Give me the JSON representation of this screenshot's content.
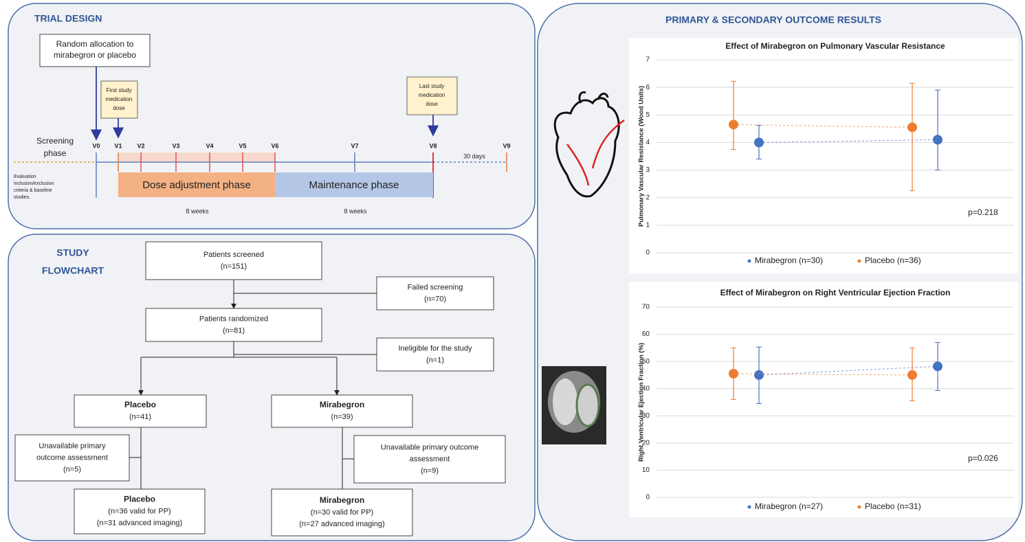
{
  "trial_design": {
    "title": "TRIAL DESIGN",
    "allocation": [
      "Random allocation to",
      "mirabegron or placebo"
    ],
    "first_dose": [
      "First study",
      "medication",
      "dose"
    ],
    "last_dose": [
      "Last study",
      "medication",
      "dose"
    ],
    "screening": [
      "Screening",
      "phase"
    ],
    "evaluation": [
      "Evaluation",
      "inclusion/exclusion",
      "criteria & baseline",
      "studies."
    ],
    "visits": [
      "V0",
      "V1",
      "V2",
      "V3",
      "V4",
      "V5",
      "V6",
      "V7",
      "V8",
      "V9"
    ],
    "dose_phase": "Dose adjustment phase",
    "maintenance_phase": "Maintenance phase",
    "dose_weeks": "8 weeks",
    "maintenance_weeks": "8 weeks",
    "followup": "30 days"
  },
  "flowchart": {
    "title": [
      "STUDY",
      "FLOWCHART"
    ],
    "nodes": [
      {
        "lines": [
          "Patients screened",
          "(n=151)"
        ]
      },
      {
        "lines": [
          "Failed screening",
          "(n=70)"
        ]
      },
      {
        "lines": [
          "Patients randomized",
          "(n=81)"
        ]
      },
      {
        "lines": [
          "Ineligible for the study",
          "(n=1)"
        ]
      },
      {
        "lines": [
          "Placebo",
          "(n=41)"
        ]
      },
      {
        "lines": [
          "Mirabegron",
          "(n=39)"
        ]
      },
      {
        "lines": [
          "Unavailable primary",
          "outcome assessment",
          "(n=5)"
        ]
      },
      {
        "lines": [
          "Unavailable primary outcome",
          "assessment",
          "(n=9)"
        ]
      },
      {
        "lines": [
          "Placebo",
          "(n=36 valid for PP)",
          "(n=31 advanced imaging)"
        ]
      },
      {
        "lines": [
          "Mirabegron",
          "(n=30 valid for PP)",
          "(n=27 advanced imaging)"
        ]
      }
    ]
  },
  "results_title": "PRIMARY & SECONDARY OUTCOME RESULTS",
  "chart_data": [
    {
      "type": "scatter",
      "title": "Effect of Mirabegron on Pulmonary Vascular Resistance",
      "y_label": "Pulmonary Vascular Resistance (Wood Units)",
      "annotation": "p=0.218",
      "categories": [
        null,
        null
      ],
      "series": [
        {
          "name": "Mirabegron (n=30)",
          "color": "#4472c4",
          "values": [
            4.0,
            4.1
          ],
          "lower": [
            3.4,
            3.0
          ],
          "upper": [
            4.62,
            5.9
          ]
        },
        {
          "name": "Placebo (n=36)",
          "color": "#ed7d31",
          "values": [
            4.65,
            4.55
          ],
          "lower": [
            3.75,
            2.25
          ],
          "upper": [
            6.22,
            6.15
          ]
        }
      ],
      "ylim": [
        0,
        7
      ],
      "yticks": [
        0,
        1,
        2,
        3,
        4,
        5,
        6,
        7
      ],
      "grid": true,
      "legend": "bottom"
    },
    {
      "type": "scatter",
      "title": "Effect of Mirabegron on Right Ventricular Ejection Fraction",
      "y_label": "Right Ventricular Ejection Fraction (%)",
      "annotation": "p=0.026",
      "categories": [
        null,
        null
      ],
      "series": [
        {
          "name": "Mirabegron (n=27)",
          "color": "#4472c4",
          "values": [
            45,
            48.2
          ],
          "lower": [
            34.5,
            39.3
          ],
          "upper": [
            55.3,
            57
          ]
        },
        {
          "name": "Placebo (n=31)",
          "color": "#ed7d31",
          "values": [
            45.5,
            45
          ],
          "lower": [
            36,
            35.5
          ],
          "upper": [
            55,
            55
          ]
        }
      ],
      "ylim": [
        0,
        70
      ],
      "yticks": [
        0,
        10,
        20,
        30,
        40,
        50,
        60,
        70
      ],
      "grid": true,
      "legend": "bottom"
    }
  ]
}
